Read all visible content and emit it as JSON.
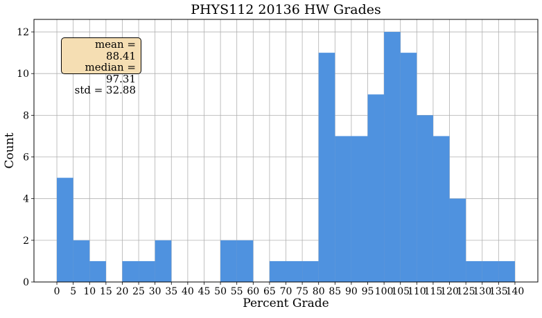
{
  "chart_data": {
    "type": "bar",
    "title": "PHYS112 20136 HW Grades",
    "xlabel": "Percent Grade",
    "ylabel": "Count",
    "bin_width": 5,
    "bin_starts": [
      0,
      5,
      10,
      15,
      20,
      25,
      30,
      35,
      40,
      45,
      50,
      55,
      60,
      65,
      70,
      75,
      80,
      85,
      90,
      95,
      100,
      105,
      110,
      115,
      120,
      125,
      130,
      135
    ],
    "values": [
      5,
      2,
      1,
      0,
      1,
      1,
      2,
      0,
      0,
      0,
      2,
      2,
      0,
      1,
      1,
      1,
      11,
      7,
      7,
      9,
      12,
      11,
      8,
      7,
      4,
      1,
      1,
      1
    ],
    "xticks": [
      "0",
      "5",
      "10",
      "15",
      "20",
      "25",
      "30",
      "35",
      "40",
      "45",
      "50",
      "55",
      "60",
      "65",
      "70",
      "75",
      "80",
      "85",
      "90",
      "95",
      "100",
      "105",
      "110",
      "115",
      "120",
      "125",
      "130",
      "135",
      "140"
    ],
    "yticks": [
      "0",
      "2",
      "4",
      "6",
      "8",
      "10",
      "12"
    ],
    "xlim": [
      -7,
      147
    ],
    "ylim": [
      0,
      12.6
    ],
    "grid": true,
    "bar_color": "#4f92df",
    "stats": {
      "mean": "mean = 88.41",
      "median": "median = 97.31",
      "std": "std = 32.88"
    }
  }
}
